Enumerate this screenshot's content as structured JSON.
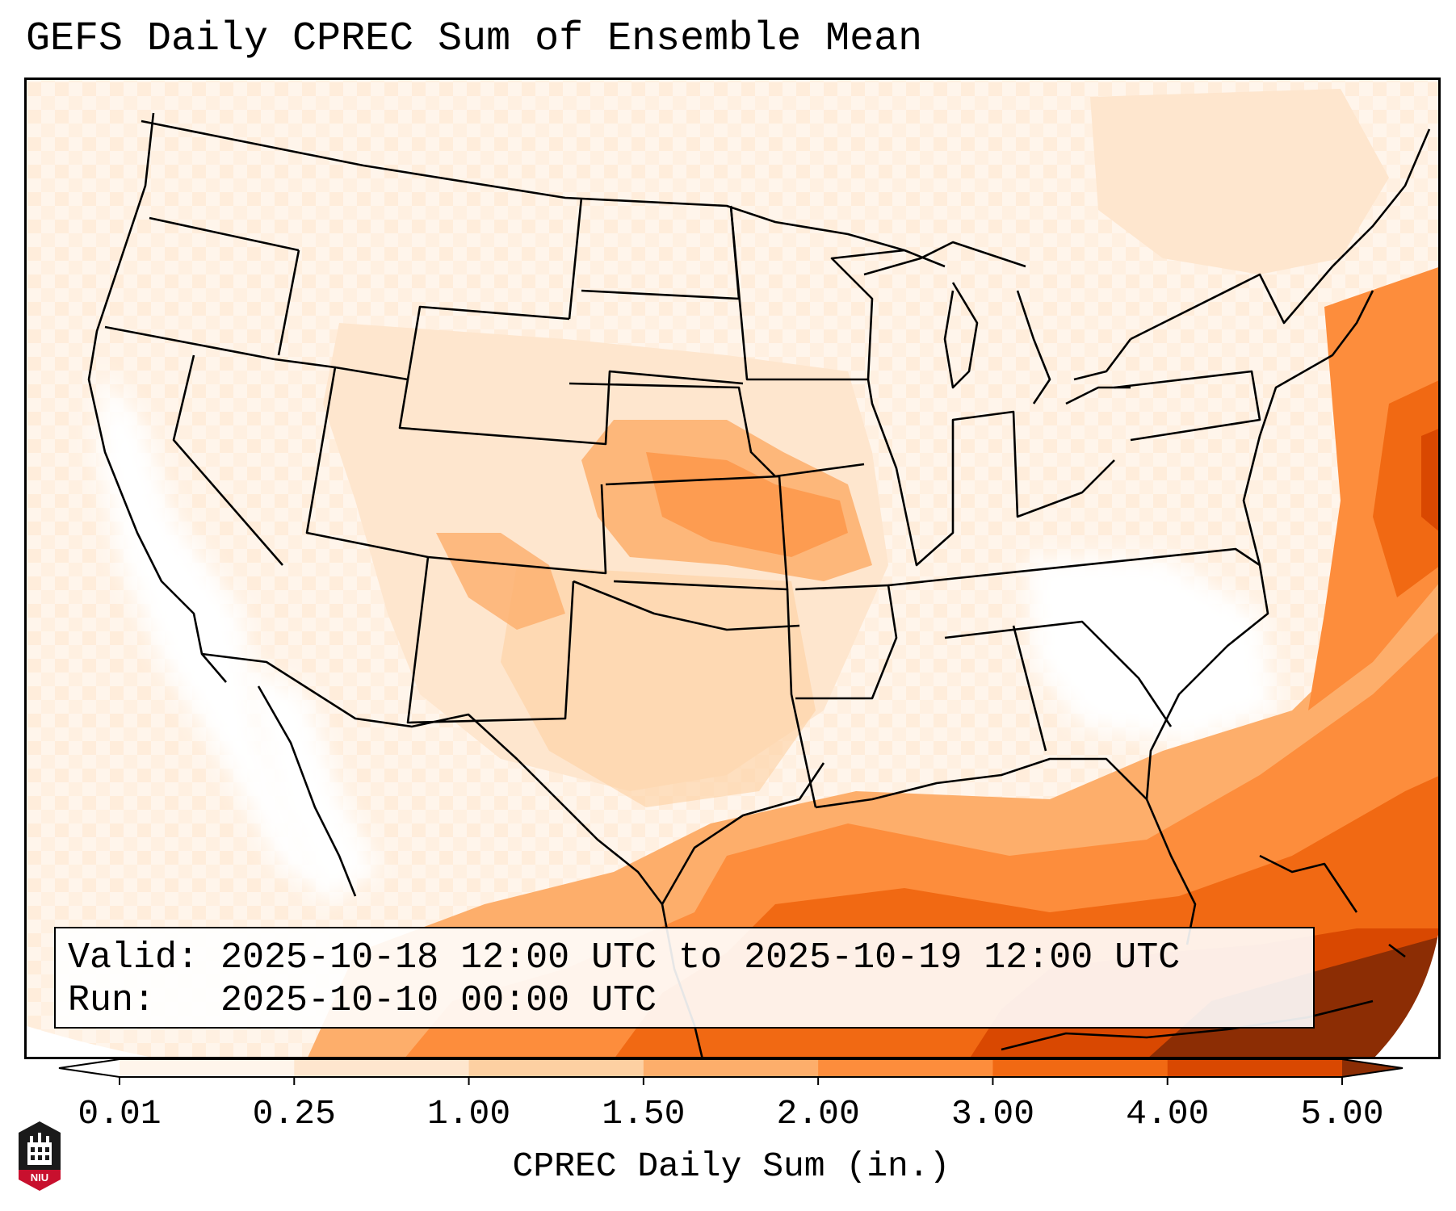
{
  "title": "GEFS Daily CPREC Sum of Ensemble Mean",
  "info": {
    "valid_label": "Valid:",
    "valid_text": "2025-10-18 12:00 UTC to 2025-10-19 12:00 UTC",
    "run_label": "Run:",
    "run_text": "2025-10-10 00:00 UTC"
  },
  "colorbar": {
    "label": "CPREC Daily Sum (in.)",
    "ticks": [
      "0.01",
      "0.25",
      "1.00",
      "1.50",
      "2.00",
      "3.00",
      "4.00",
      "5.00"
    ],
    "colors": [
      "#fff5eb",
      "#fee6ce",
      "#fdd0a2",
      "#fdae6b",
      "#fd8d3c",
      "#f16913",
      "#d94801",
      "#8c2d04"
    ]
  },
  "logo": {
    "icon": "niu-building-icon",
    "text": "NIU",
    "colors": {
      "shield": "#1a1a1a",
      "banner": "#c8102e"
    }
  }
}
